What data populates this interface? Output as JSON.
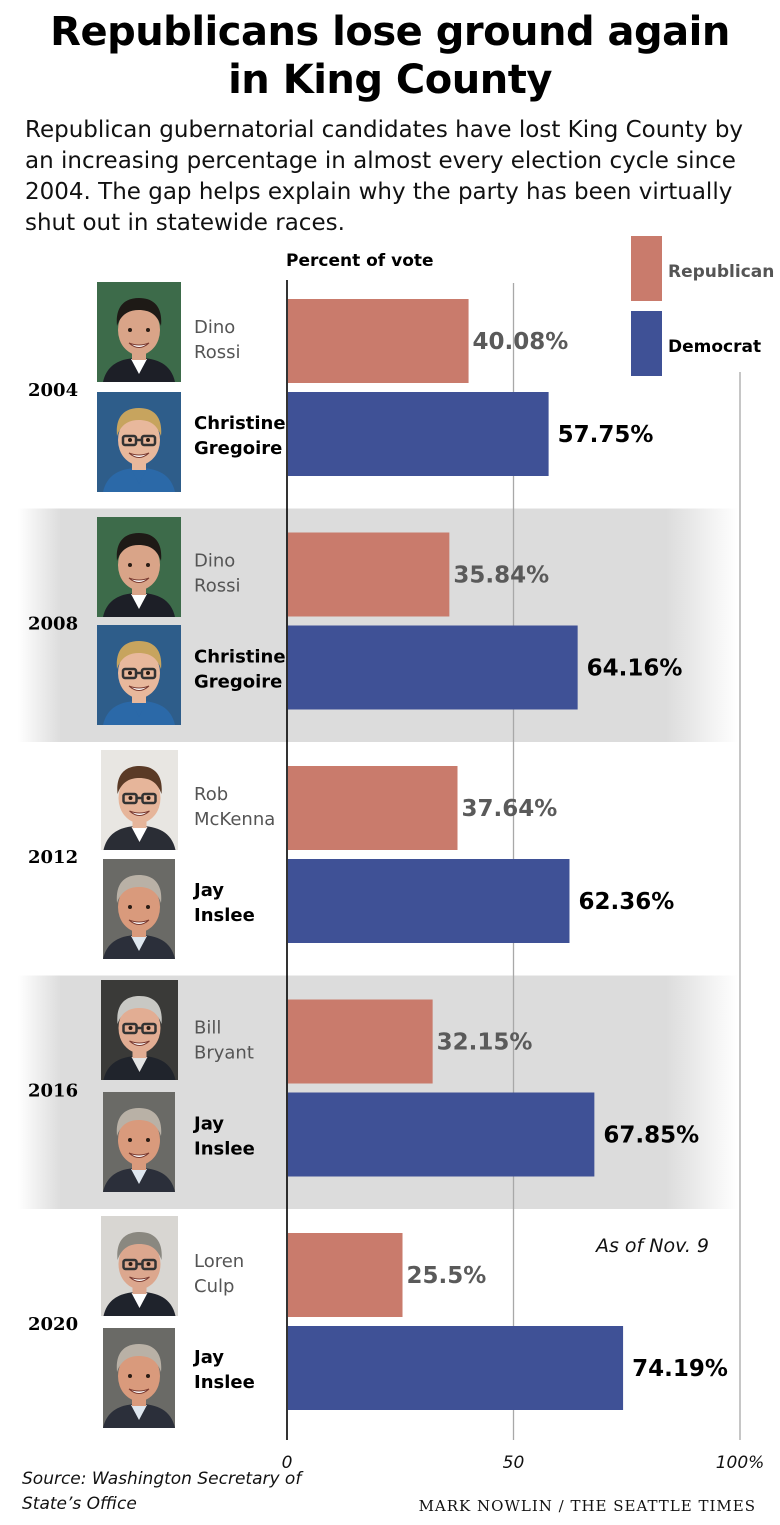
{
  "title_line1": "Republicans lose ground again",
  "title_line2": "in King County",
  "subtitle": "Republican gubernatorial candidates have lost King County by an increasing percentage in almost every election cycle since 2004. The gap helps explain why the party has been virtually shut out in statewide races.",
  "source": "Source: Washington Secretary of State’s Office",
  "credit": "MARK NOWLIN / THE SEATTLE TIMES",
  "colors": {
    "republican": "#c97b6c",
    "democrat": "#3f5196",
    "band": "#dcdcdc"
  },
  "chart_data": {
    "type": "bar",
    "orientation": "horizontal",
    "ylabel": "Percent of vote",
    "xlim": [
      0,
      100
    ],
    "ticks": [
      {
        "value": 0,
        "label": "0"
      },
      {
        "value": 50,
        "label": "50"
      },
      {
        "value": 100,
        "label": "100%"
      }
    ],
    "legend": {
      "position": "top-right",
      "entries": [
        "Republican",
        "Democrat"
      ]
    },
    "note": "As of Nov. 9",
    "note_year": "2020",
    "grid": true,
    "series": [
      {
        "name": "Republican",
        "values": [
          40.08,
          35.84,
          37.64,
          32.15,
          25.5
        ]
      },
      {
        "name": "Democrat",
        "values": [
          57.75,
          64.16,
          62.36,
          67.85,
          74.19
        ]
      }
    ],
    "categories": [
      "2004",
      "2008",
      "2012",
      "2016",
      "2020"
    ],
    "years": [
      {
        "year": "2004",
        "shaded": false,
        "rep": {
          "first": "Dino",
          "last": "Rossi",
          "value": 40.08,
          "label": "40.08%",
          "photo": "rossi"
        },
        "dem": {
          "first": "Christine",
          "last": "Gregoire",
          "value": 57.75,
          "label": "57.75%",
          "photo": "gregoire"
        }
      },
      {
        "year": "2008",
        "shaded": true,
        "rep": {
          "first": "Dino",
          "last": "Rossi",
          "value": 35.84,
          "label": "35.84%",
          "photo": "rossi"
        },
        "dem": {
          "first": "Christine",
          "last": "Gregoire",
          "value": 64.16,
          "label": "64.16%",
          "photo": "gregoire"
        }
      },
      {
        "year": "2012",
        "shaded": false,
        "rep": {
          "first": "Rob",
          "last": "McKenna",
          "value": 37.64,
          "label": "37.64%",
          "photo": "mckenna"
        },
        "dem": {
          "first": "Jay",
          "last": "Inslee",
          "value": 62.36,
          "label": "62.36%",
          "photo": "inslee"
        }
      },
      {
        "year": "2016",
        "shaded": true,
        "rep": {
          "first": "Bill",
          "last": "Bryant",
          "value": 32.15,
          "label": "32.15%",
          "photo": "bryant"
        },
        "dem": {
          "first": "Jay",
          "last": "Inslee",
          "value": 67.85,
          "label": "67.85%",
          "photo": "inslee"
        }
      },
      {
        "year": "2020",
        "shaded": false,
        "rep": {
          "first": "Loren",
          "last": "Culp",
          "value": 25.5,
          "label": "25.5%",
          "photo": "culp"
        },
        "dem": {
          "first": "Jay",
          "last": "Inslee",
          "value": 74.19,
          "label": "74.19%",
          "photo": "inslee"
        }
      }
    ]
  }
}
